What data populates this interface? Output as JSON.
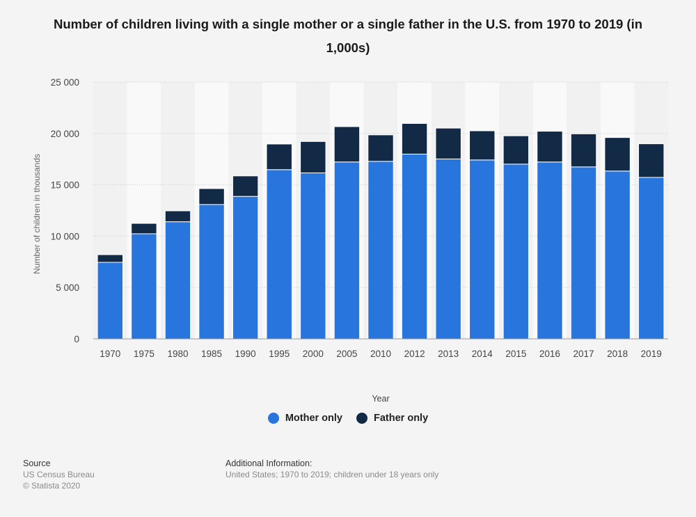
{
  "chart_data": {
    "type": "bar",
    "stacked": true,
    "title": "Number of children living with a single mother or a single father in the U.S. from 1970 to 2019 (in 1,000s)",
    "xlabel": "Year",
    "ylabel": "Number of children in thousands",
    "ylim": [
      0,
      25000
    ],
    "yticks": [
      0,
      5000,
      10000,
      15000,
      20000,
      25000
    ],
    "ytick_labels": [
      "0",
      "5 000",
      "10 000",
      "15 000",
      "20 000",
      "25 000"
    ],
    "grid": true,
    "legend_position": "bottom",
    "categories": [
      "1970",
      "1975",
      "1980",
      "1985",
      "1990",
      "1995",
      "2000",
      "2005",
      "2010",
      "2012",
      "2013",
      "2014",
      "2015",
      "2016",
      "2017",
      "2018",
      "2019"
    ],
    "series": [
      {
        "name": "Mother only",
        "color": "#2876dd",
        "values": [
          7452,
          10231,
          11406,
          13081,
          13874,
          16477,
          16162,
          17225,
          17285,
          17991,
          17517,
          17421,
          17013,
          17222,
          16745,
          16340,
          15722
        ]
      },
      {
        "name": "Father only",
        "color": "#122a46",
        "values": [
          748,
          1014,
          1060,
          1554,
          1993,
          2496,
          3058,
          3442,
          2578,
          2984,
          3005,
          2839,
          2761,
          2997,
          3218,
          3265,
          3274
        ]
      }
    ]
  },
  "footer": {
    "source_heading": "Source",
    "source_line1": "US Census Bureau",
    "source_line2": "© Statista 2020",
    "info_heading": "Additional Information:",
    "info_text": "United States; 1970 to 2019; children under 18 years only"
  }
}
